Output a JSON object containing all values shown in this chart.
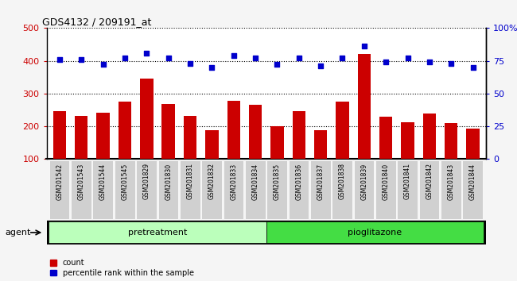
{
  "title": "GDS4132 / 209191_at",
  "categories": [
    "GSM201542",
    "GSM201543",
    "GSM201544",
    "GSM201545",
    "GSM201829",
    "GSM201830",
    "GSM201831",
    "GSM201832",
    "GSM201833",
    "GSM201834",
    "GSM201835",
    "GSM201836",
    "GSM201837",
    "GSM201838",
    "GSM201839",
    "GSM201840",
    "GSM201841",
    "GSM201842",
    "GSM201843",
    "GSM201844"
  ],
  "counts": [
    245,
    232,
    242,
    275,
    345,
    267,
    232,
    187,
    278,
    265,
    200,
    247,
    188,
    275,
    420,
    228,
    213,
    238,
    210,
    192
  ],
  "percentiles": [
    76,
    76,
    72,
    77,
    81,
    77,
    73,
    70,
    79,
    77,
    72,
    77,
    71,
    77,
    86,
    74,
    77,
    74,
    73,
    70
  ],
  "bar_color": "#cc0000",
  "dot_color": "#0000cc",
  "ylim_left": [
    100,
    500
  ],
  "ylim_right": [
    0,
    100
  ],
  "yticks_left": [
    100,
    200,
    300,
    400,
    500
  ],
  "yticks_right": [
    0,
    25,
    50,
    75,
    100
  ],
  "yticklabels_right": [
    "0",
    "25",
    "50",
    "75",
    "100%"
  ],
  "pretreatment_count": 10,
  "group_labels": [
    "pretreatment",
    "pioglitazone"
  ],
  "group_color_light": "#bbffbb",
  "group_color_dark": "#44dd44",
  "agent_label": "agent",
  "legend_count_label": "count",
  "legend_pct_label": "percentile rank within the sample",
  "tickbox_color": "#d0d0d0",
  "plot_bg": "#ffffff",
  "fig_bg": "#f5f5f5",
  "grid_color": "#000000",
  "n": 20
}
